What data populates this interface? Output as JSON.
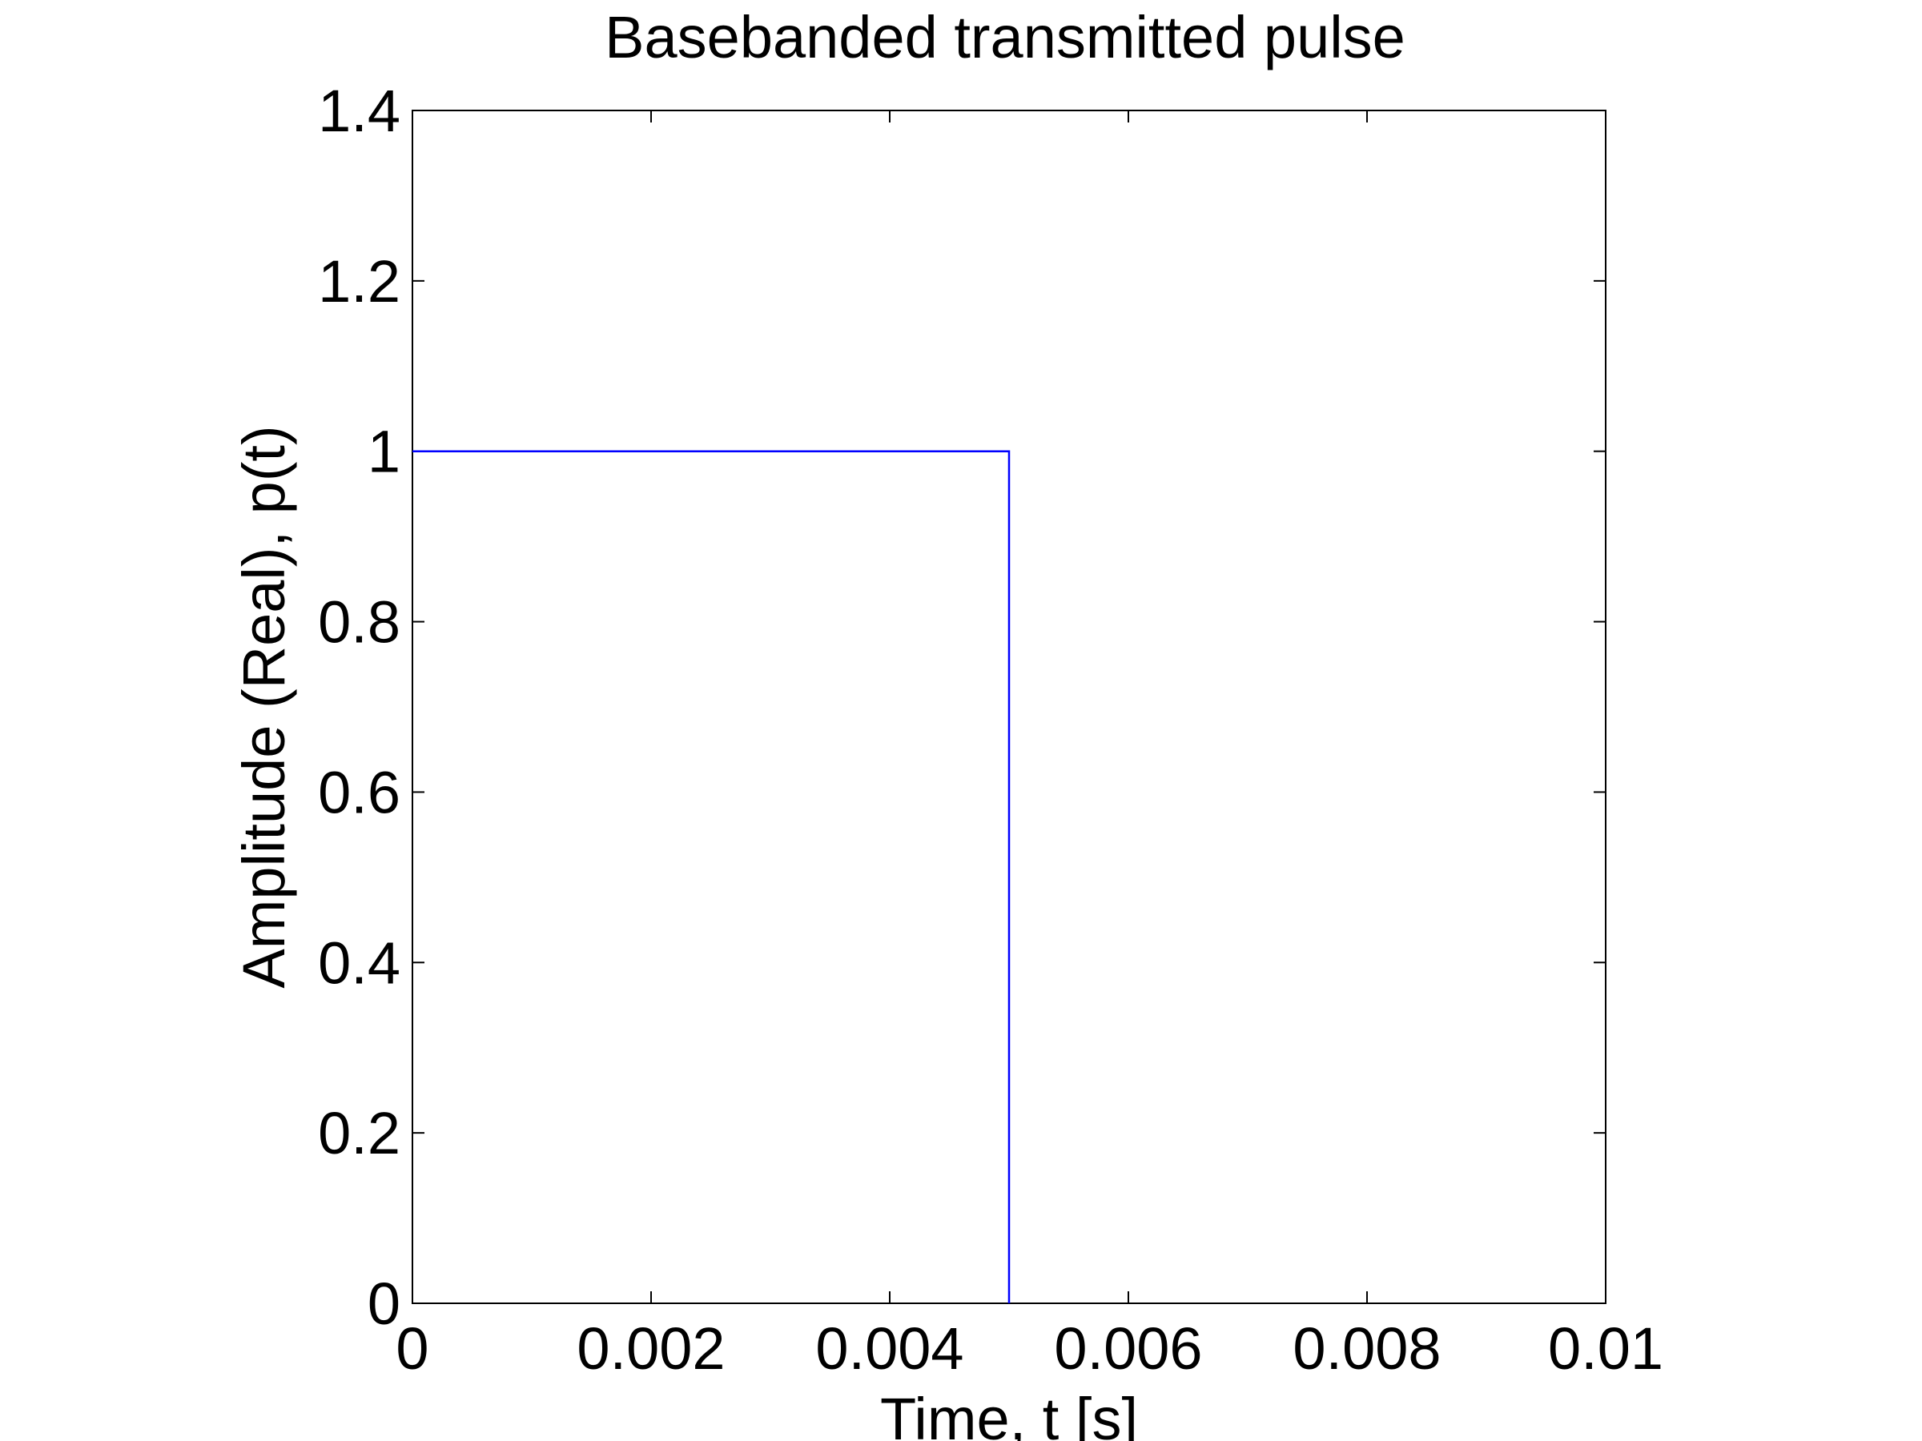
{
  "chart_data": {
    "type": "line",
    "title": "Basebanded transmitted pulse",
    "xlabel": "Time, t [s]",
    "ylabel": "Amplitude (Real), p(t)",
    "xlim": [
      0,
      0.01
    ],
    "ylim": [
      0,
      1.4
    ],
    "xticks": [
      0,
      0.002,
      0.004,
      0.006,
      0.008,
      0.01
    ],
    "xtick_labels": [
      "0",
      "0.002",
      "0.004",
      "0.006",
      "0.008",
      "0.01"
    ],
    "yticks": [
      0,
      0.2,
      0.4,
      0.6,
      0.8,
      1,
      1.2,
      1.4
    ],
    "ytick_labels": [
      "0",
      "0.2",
      "0.4",
      "0.6",
      "0.8",
      "1",
      "1.2",
      "1.4"
    ],
    "grid": false,
    "series": [
      {
        "color": "#0000ff",
        "x": [
          0,
          0.005,
          0.005,
          0.005,
          0.005
        ],
        "y": [
          1,
          1,
          0.5,
          0.5,
          0
        ]
      }
    ]
  }
}
